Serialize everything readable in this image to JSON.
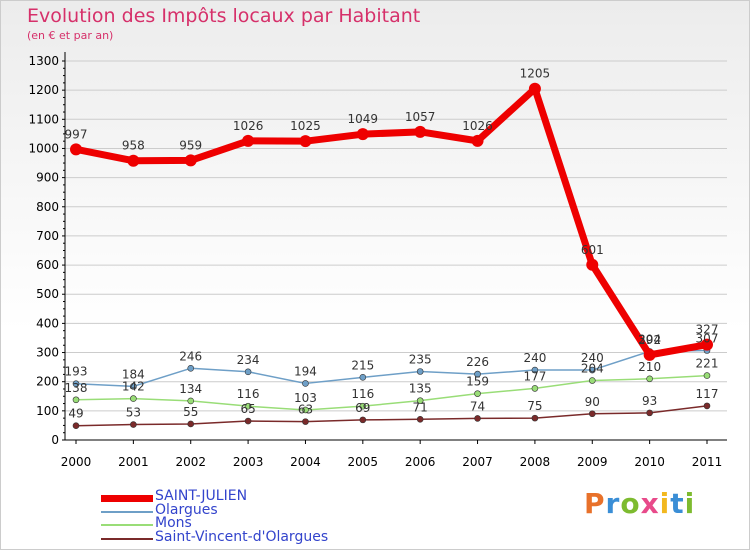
{
  "title": "Evolution des Impôts locaux par Habitant",
  "subtitle": "(en € et par an)",
  "logo_text": "Proxiti",
  "logo_colors": [
    "#e8712a",
    "#3a8ed6",
    "#7dbb2f",
    "#e84a8a",
    "#f2b81f",
    "#3a8ed6",
    "#7dbb2f"
  ],
  "chart_data": {
    "type": "line",
    "title": "Evolution des Impôts locaux par Habitant",
    "subtitle": "(en € et par an)",
    "xlabel": "",
    "ylabel": "",
    "ylim": [
      0,
      1300
    ],
    "yticks": [
      0,
      100,
      200,
      300,
      400,
      500,
      600,
      700,
      800,
      900,
      1000,
      1100,
      1200,
      1300
    ],
    "categories": [
      "2000",
      "2001",
      "2002",
      "2003",
      "2004",
      "2005",
      "2006",
      "2007",
      "2008",
      "2009",
      "2010",
      "2011"
    ],
    "legend_position": "bottom-left",
    "series": [
      {
        "name": "SAINT-JULIEN",
        "color": "#ee0000",
        "values": [
          997,
          958,
          959,
          1026,
          1025,
          1049,
          1057,
          1026,
          1205,
          601,
          292,
          327
        ]
      },
      {
        "name": "Olargues",
        "color": "#6e9fc7",
        "values": [
          193,
          184,
          246,
          234,
          194,
          215,
          235,
          226,
          240,
          240,
          304,
          307
        ]
      },
      {
        "name": "Mons",
        "color": "#99dd77",
        "values": [
          138,
          142,
          134,
          116,
          103,
          116,
          135,
          159,
          177,
          204,
          210,
          221
        ]
      },
      {
        "name": "Saint-Vincent-d'Olargues",
        "color": "#7a2a2a",
        "values": [
          49,
          53,
          55,
          65,
          63,
          69,
          71,
          74,
          75,
          90,
          93,
          117
        ]
      }
    ]
  }
}
